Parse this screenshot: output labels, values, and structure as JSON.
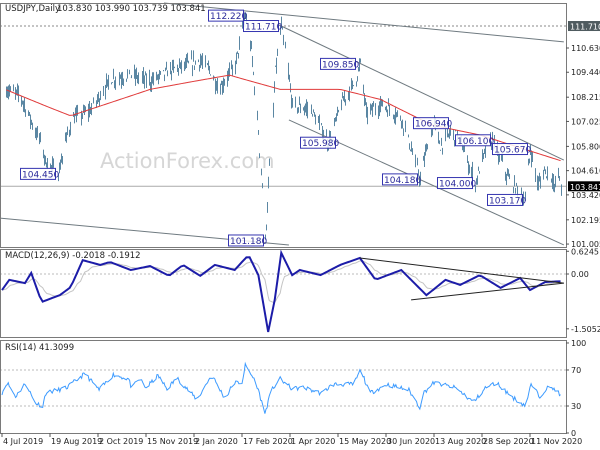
{
  "header": {
    "symbol": "USDJPY,Daily",
    "ohlc": "103.830 103.990 103.739 103.841",
    "watermark": "ActionForex.com"
  },
  "colors": {
    "bars": "#5b87a3",
    "ma": "#e03a3a",
    "macd": "#1c1ca8",
    "signal": "#c4c4c4",
    "rsi": "#3d9bff",
    "trendline": "#6f7a80",
    "label_border": "#3535b0"
  },
  "chart_data": [
    {
      "type": "line",
      "panel": "price",
      "title": "USDJPY,Daily",
      "ylim": [
        100.86,
        112.84
      ],
      "y_ticks": [
        "110.630",
        "109.440",
        "108.215",
        "107.025",
        "105.800",
        "104.610",
        "103.420",
        "102.195",
        "101.005"
      ],
      "y_tick_values": [
        110.63,
        109.44,
        108.215,
        107.025,
        105.8,
        104.61,
        103.42,
        102.195,
        101.005
      ],
      "x_ticks": [
        "4 Jul 2019",
        "19 Aug 2019",
        "2 Oct 2019",
        "15 Nov 2019",
        "2 Jan 2020",
        "17 Feb 2020",
        "1 Apr 2020",
        "15 May 2020",
        "30 Jun 2020",
        "13 Aug 2020",
        "28 Sep 2020",
        "11 Nov 2020"
      ],
      "x_tick_dates": [
        "2019-07-04",
        "2019-08-19",
        "2019-10-02",
        "2019-11-15",
        "2020-01-02",
        "2020-02-17",
        "2020-04-01",
        "2020-05-15",
        "2020-06-30",
        "2020-08-13",
        "2020-09-28",
        "2020-11-11"
      ],
      "last_price": "103.841",
      "reference_level": "111.710",
      "series": [
        {
          "role": "price",
          "points": [
            [
              "2019-07-07",
              108.6
            ],
            [
              "2019-07-21",
              108.3
            ],
            [
              "2019-08-09",
              106.1
            ],
            [
              "2019-08-14",
              105.1
            ],
            [
              "2019-08-26",
              104.45
            ],
            [
              "2019-09-07",
              107.1
            ],
            [
              "2019-09-25",
              107.6
            ],
            [
              "2019-10-13",
              109.1
            ],
            [
              "2019-11-01",
              109.3
            ],
            [
              "2019-11-19",
              109.0
            ],
            [
              "2019-12-12",
              109.6
            ],
            [
              "2020-01-08",
              110.0
            ],
            [
              "2020-01-17",
              109.5
            ],
            [
              "2020-01-26",
              108.6
            ],
            [
              "2020-02-10",
              109.8
            ],
            [
              "2020-02-20",
              112.22
            ],
            [
              "2020-02-25",
              110.5
            ],
            [
              "2020-03-03",
              106.5
            ],
            [
              "2020-03-09",
              101.18
            ],
            [
              "2020-03-14",
              105.6
            ],
            [
              "2020-03-18",
              109.5
            ],
            [
              "2020-03-24",
              111.71
            ],
            [
              "2020-04-03",
              107.8
            ],
            [
              "2020-04-20",
              107.6
            ],
            [
              "2020-05-06",
              105.98
            ],
            [
              "2020-05-17",
              107.8
            ],
            [
              "2020-05-31",
              109.0
            ],
            [
              "2020-06-05",
              109.85
            ],
            [
              "2020-06-11",
              107.4
            ],
            [
              "2020-06-25",
              107.9
            ],
            [
              "2020-07-14",
              107.2
            ],
            [
              "2020-07-31",
              104.18
            ],
            [
              "2020-08-07",
              105.9
            ],
            [
              "2020-08-13",
              106.94
            ],
            [
              "2020-08-19",
              105.8
            ],
            [
              "2020-08-28",
              106.5
            ],
            [
              "2020-09-07",
              106.1
            ],
            [
              "2020-09-21",
              104.0
            ],
            [
              "2020-10-01",
              105.6
            ],
            [
              "2020-10-07",
              106.1
            ],
            [
              "2020-10-21",
              104.3
            ],
            [
              "2020-11-06",
              103.17
            ],
            [
              "2020-11-11",
              105.67
            ],
            [
              "2020-11-18",
              103.9
            ],
            [
              "2020-11-24",
              104.6
            ],
            [
              "2020-12-01",
              104.3
            ],
            [
              "2020-12-03",
              103.7
            ],
            [
              "2020-12-07",
              104.5
            ],
            [
              "2020-12-09",
              103.84
            ]
          ]
        },
        {
          "role": "moving-average",
          "points": [
            [
              "2019-07-07",
              108.6
            ],
            [
              "2019-09-07",
              107.3
            ],
            [
              "2019-11-19",
              108.6
            ],
            [
              "2020-02-05",
              109.3
            ],
            [
              "2020-03-23",
              108.6
            ],
            [
              "2020-05-17",
              108.6
            ],
            [
              "2020-06-25",
              108.1
            ],
            [
              "2020-08-11",
              106.85
            ],
            [
              "2020-09-26",
              106.36
            ],
            [
              "2020-12-09",
              105.1
            ]
          ]
        }
      ],
      "trendlines": [
        [
          [
            "2019-12-03",
            112.84
          ],
          [
            "2020-12-12",
            110.93
          ]
        ],
        [
          [
            "2020-03-22",
            111.76
          ],
          [
            "2020-12-12",
            105.13
          ]
        ],
        [
          [
            "2020-03-31",
            107.1
          ],
          [
            "2020-12-12",
            100.96
          ]
        ],
        [
          [
            "2019-07-02",
            102.28
          ],
          [
            "2020-03-31",
            100.96
          ]
        ]
      ],
      "annotations": [
        {
          "text": "112.220",
          "date": "2020-02-20",
          "price": 112.22
        },
        {
          "text": "111.710",
          "date": "2020-03-24",
          "price": 111.71
        },
        {
          "text": "109.850",
          "date": "2020-06-05",
          "price": 109.85
        },
        {
          "text": "105.980",
          "date": "2020-05-06",
          "price": 105.98
        },
        {
          "text": "104.450",
          "date": "2019-08-26",
          "price": 104.45
        },
        {
          "text": "104.180",
          "date": "2020-07-31",
          "price": 104.18
        },
        {
          "text": "106.940",
          "date": "2020-08-13",
          "price": 106.94
        },
        {
          "text": "104.000",
          "date": "2020-09-21",
          "price": 104.0
        },
        {
          "text": "106.100",
          "date": "2020-10-07",
          "price": 106.1
        },
        {
          "text": "105.670",
          "date": "2020-11-11",
          "price": 105.67
        },
        {
          "text": "103.170",
          "date": "2020-11-06",
          "price": 103.17
        },
        {
          "text": "101.180",
          "date": "2020-03-09",
          "price": 101.18
        }
      ]
    },
    {
      "type": "line",
      "panel": "macd",
      "title": "MACD(12,26,9) -0.2018 -0.1912",
      "ylim": [
        -1.73,
        0.687
      ],
      "y_ticks": [
        "0.6245",
        "0.00",
        "-1.5052"
      ],
      "y_tick_values": [
        0.6245,
        0,
        -1.5052
      ],
      "series": [
        {
          "role": "macd",
          "points": [
            [
              "2019-07-04",
              -0.44
            ],
            [
              "2019-07-11",
              -0.16
            ],
            [
              "2019-07-26",
              -0.25
            ],
            [
              "2019-08-01",
              0.03
            ],
            [
              "2019-08-11",
              -0.77
            ],
            [
              "2019-08-28",
              -0.58
            ],
            [
              "2019-09-07",
              -0.36
            ],
            [
              "2019-09-18",
              0.38
            ],
            [
              "2019-10-04",
              0.25
            ],
            [
              "2019-10-13",
              0.33
            ],
            [
              "2019-11-01",
              0.11
            ],
            [
              "2019-11-19",
              0.22
            ],
            [
              "2019-12-08",
              -0.05
            ],
            [
              "2019-12-22",
              0.25
            ],
            [
              "2020-01-08",
              -0.05
            ],
            [
              "2020-01-22",
              0.25
            ],
            [
              "2020-02-10",
              0.11
            ],
            [
              "2020-02-23",
              0.52
            ],
            [
              "2020-03-03",
              -0.03
            ],
            [
              "2020-03-12",
              -1.59
            ],
            [
              "2020-03-18",
              -0.71
            ],
            [
              "2020-03-24",
              0.58
            ],
            [
              "2020-04-03",
              -0.03
            ],
            [
              "2020-04-10",
              0.11
            ],
            [
              "2020-04-29",
              -0.03
            ],
            [
              "2020-05-17",
              0.25
            ],
            [
              "2020-06-05",
              0.44
            ],
            [
              "2020-06-20",
              -0.16
            ],
            [
              "2020-07-14",
              0.11
            ],
            [
              "2020-08-06",
              -0.58
            ],
            [
              "2020-08-24",
              -0.16
            ],
            [
              "2020-09-07",
              -0.3
            ],
            [
              "2020-09-26",
              -0.03
            ],
            [
              "2020-10-15",
              -0.38
            ],
            [
              "2020-11-02",
              -0.11
            ],
            [
              "2020-11-11",
              -0.44
            ],
            [
              "2020-11-25",
              -0.22
            ],
            [
              "2020-12-09",
              -0.2
            ]
          ]
        }
      ],
      "trendlines": [
        [
          [
            "2020-06-05",
            0.44
          ],
          [
            "2020-12-12",
            -0.25
          ]
        ],
        [
          [
            "2020-07-23",
            -0.71
          ],
          [
            "2020-12-12",
            -0.25
          ]
        ]
      ]
    },
    {
      "type": "line",
      "panel": "rsi",
      "title": "RSI(14) 41.3099",
      "ylim": [
        0,
        103.3
      ],
      "y_ticks": [
        "100",
        "70",
        "30",
        "0"
      ],
      "y_tick_values": [
        100,
        70,
        30,
        0
      ],
      "levels": [
        70,
        30
      ],
      "series": [
        {
          "role": "rsi",
          "points": [
            [
              "2019-07-04",
              44.7
            ],
            [
              "2019-07-09",
              56
            ],
            [
              "2019-07-17",
              40.5
            ],
            [
              "2019-07-27",
              56
            ],
            [
              "2019-08-04",
              34
            ],
            [
              "2019-08-12",
              30
            ],
            [
              "2019-08-15",
              44.6
            ],
            [
              "2019-09-03",
              50
            ],
            [
              "2019-09-20",
              66
            ],
            [
              "2019-10-03",
              47.7
            ],
            [
              "2019-10-16",
              64.7
            ],
            [
              "2019-10-30",
              60
            ],
            [
              "2019-11-02",
              49
            ],
            [
              "2019-11-09",
              61
            ],
            [
              "2019-11-15",
              50
            ],
            [
              "2019-11-27",
              63.8
            ],
            [
              "2019-12-06",
              49
            ],
            [
              "2019-12-16",
              61
            ],
            [
              "2020-01-05",
              37
            ],
            [
              "2020-01-19",
              64.7
            ],
            [
              "2020-02-01",
              37.6
            ],
            [
              "2020-02-09",
              56
            ],
            [
              "2020-02-17",
              56
            ],
            [
              "2020-02-20",
              75
            ],
            [
              "2020-03-01",
              56
            ],
            [
              "2020-03-09",
              21.6
            ],
            [
              "2020-03-15",
              47.7
            ],
            [
              "2020-03-23",
              60
            ],
            [
              "2020-04-03",
              49
            ],
            [
              "2020-04-13",
              50.5
            ],
            [
              "2020-04-30",
              44
            ],
            [
              "2020-05-10",
              54
            ],
            [
              "2020-05-30",
              54
            ],
            [
              "2020-06-06",
              71
            ],
            [
              "2020-06-14",
              44
            ],
            [
              "2020-07-01",
              54
            ],
            [
              "2020-07-21",
              47.7
            ],
            [
              "2020-07-31",
              28.5
            ],
            [
              "2020-08-03",
              44
            ],
            [
              "2020-08-13",
              56
            ],
            [
              "2020-09-03",
              50
            ],
            [
              "2020-09-20",
              34
            ],
            [
              "2020-10-01",
              50
            ],
            [
              "2020-10-11",
              56
            ],
            [
              "2020-10-25",
              40.5
            ],
            [
              "2020-11-07",
              30
            ],
            [
              "2020-11-12",
              54
            ],
            [
              "2020-11-20",
              40.5
            ],
            [
              "2020-11-26",
              50
            ],
            [
              "2020-12-04",
              49
            ],
            [
              "2020-12-09",
              41.3
            ]
          ]
        }
      ]
    }
  ]
}
